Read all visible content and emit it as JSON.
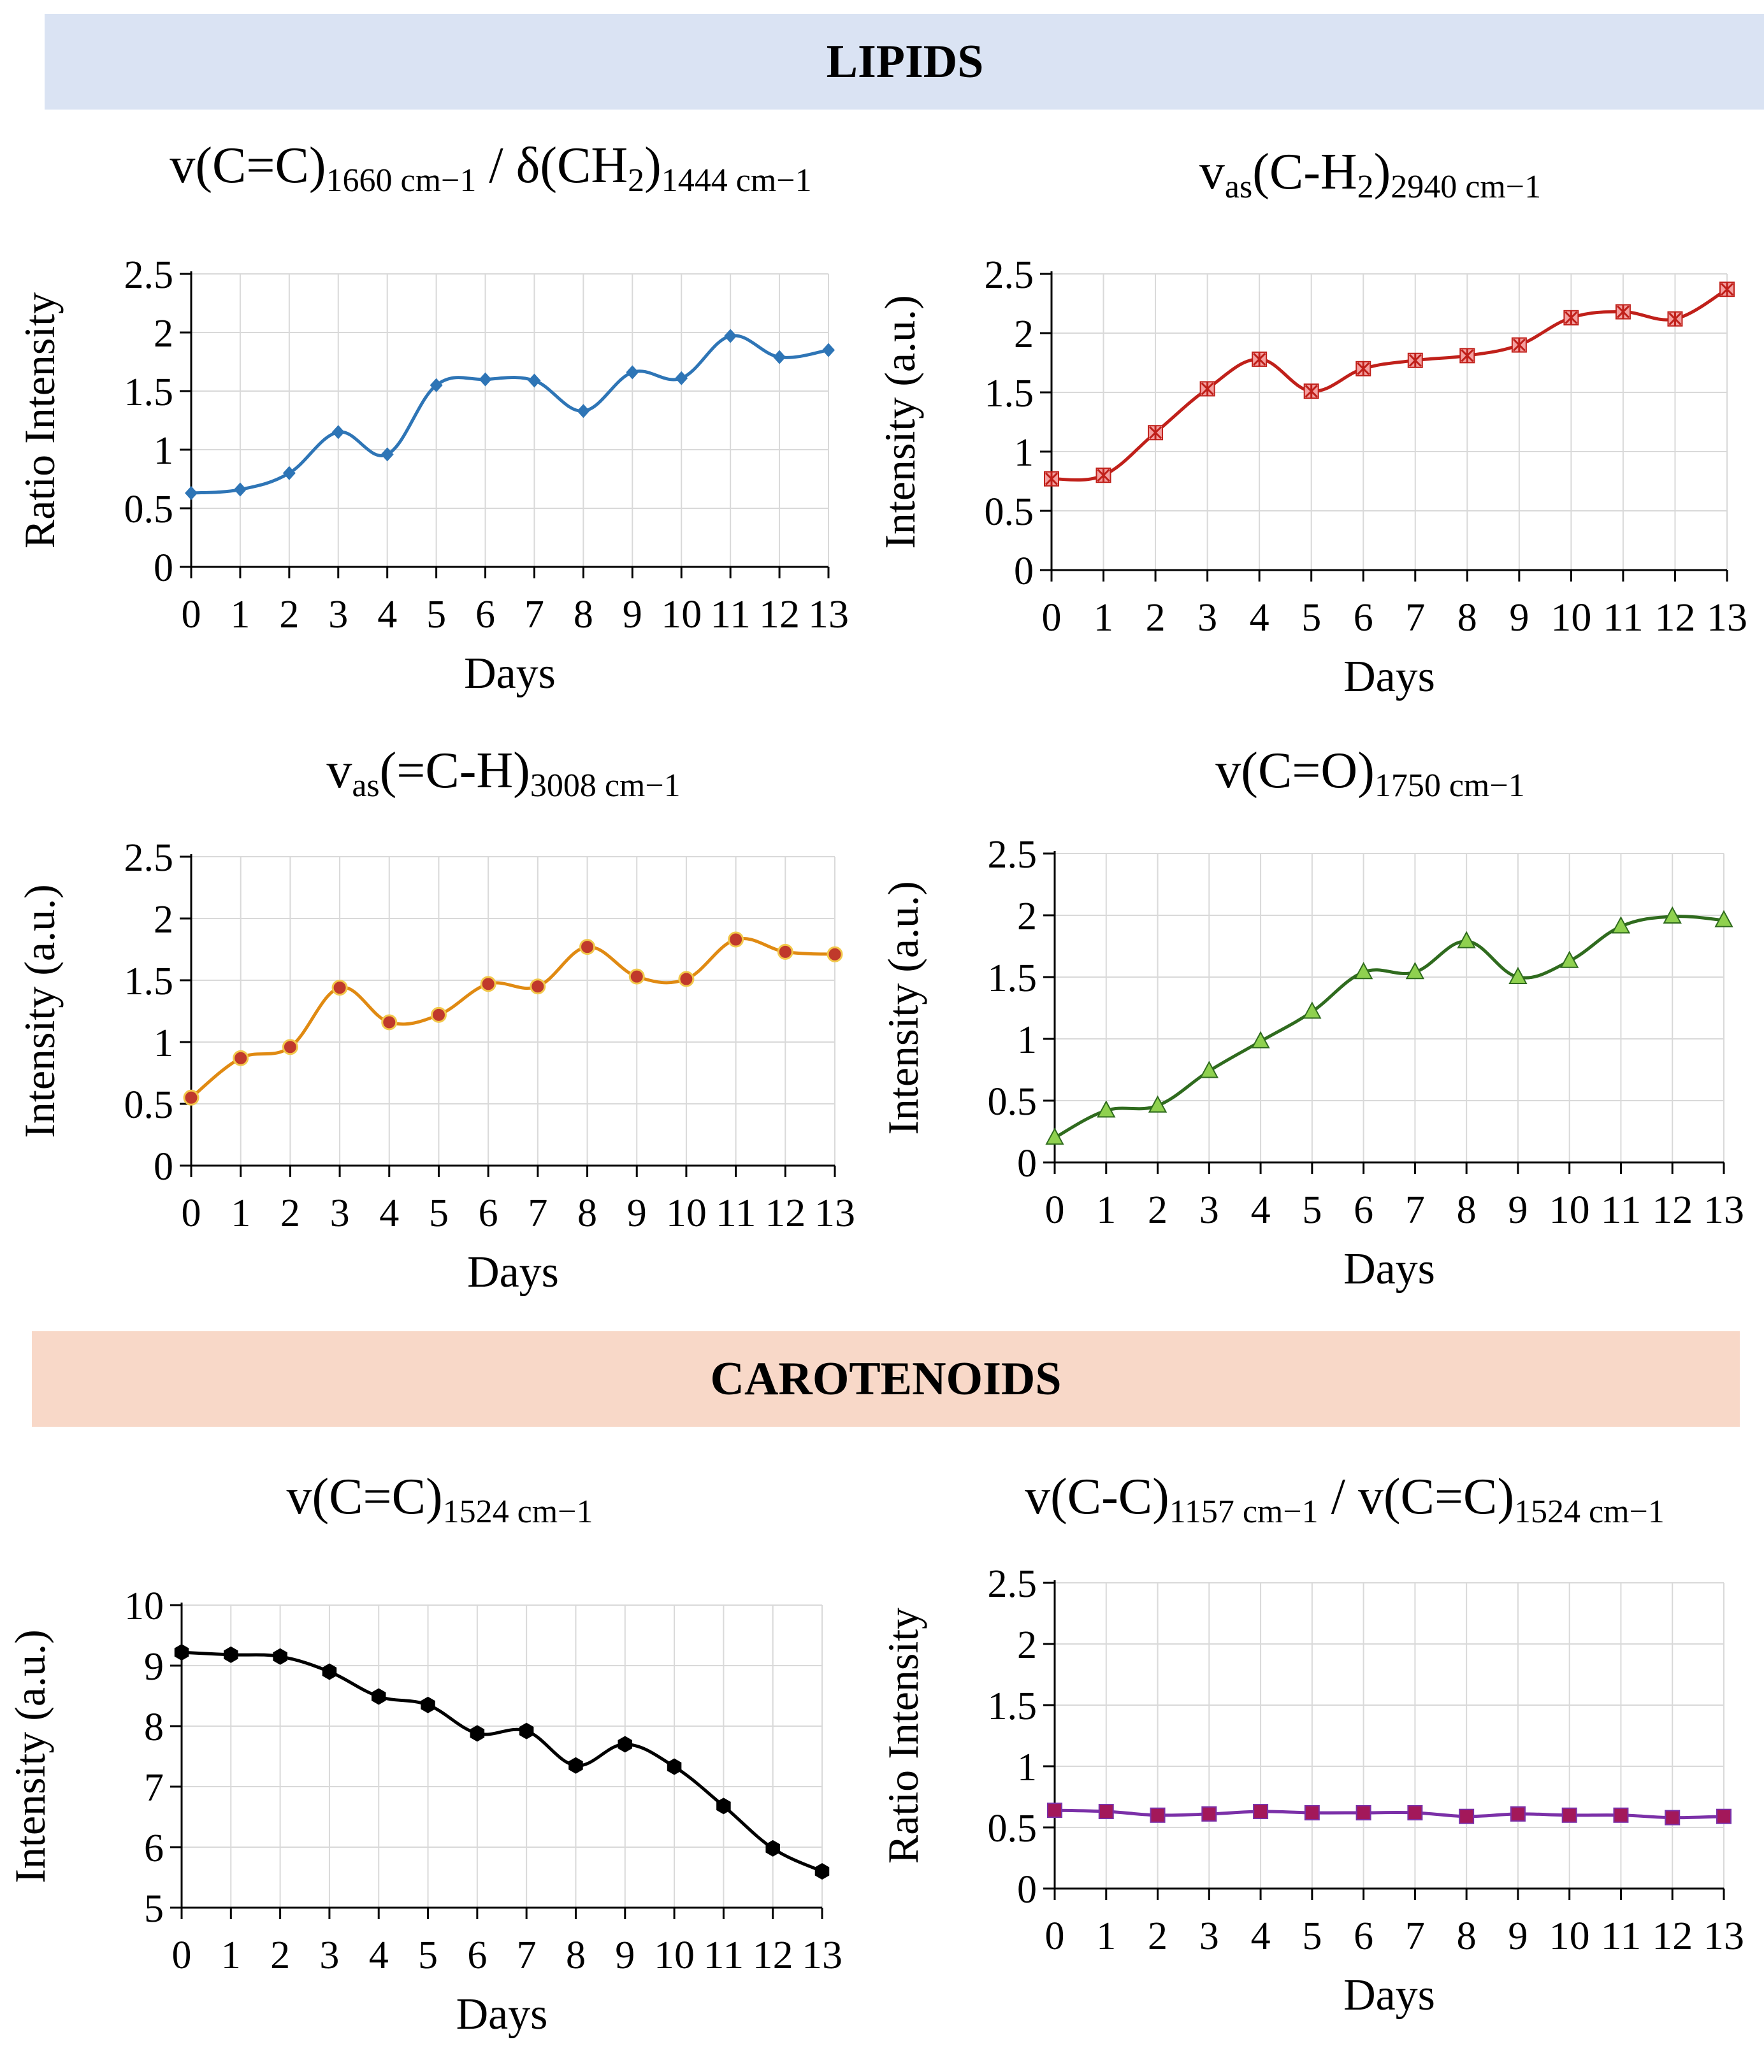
{
  "sections": {
    "lipids": "LIPIDS",
    "carotenoids": "CAROTENOIDS"
  },
  "titles": {
    "c1": {
      "main": "v(C=C)",
      "sub1": "1660 cm−1",
      "mid": " / δ(CH",
      "sub2": "2",
      "mid2": ")",
      "sub3": "1444 cm−1"
    },
    "c2": {
      "main": "v",
      "sub1": "as",
      "mid": "(C-H",
      "sub2": "2",
      "mid2": ")",
      "sub3": "2940 cm−1"
    },
    "c3": {
      "main": "v",
      "sub1": "as",
      "mid": "(=C-H)",
      "sub2": "3008 cm−1"
    },
    "c4": {
      "main": "v(C=O)",
      "sub1": "1750 cm−1"
    },
    "c5": {
      "main": "v(C=C)",
      "sub1": "1524 cm−1"
    },
    "c6": {
      "main": "v(C-C)",
      "sub1": "1157 cm−1",
      "mid": " / v(C=C)",
      "sub2": "1524 cm−1"
    }
  },
  "chart_data": [
    {
      "id": "c1",
      "type": "line",
      "xlabel": "Days",
      "ylabel": "Ratio Intensity",
      "categories": [
        "0",
        "1",
        "2",
        "3",
        "4",
        "5",
        "6",
        "7",
        "8",
        "9",
        "10",
        "11",
        "12",
        "13"
      ],
      "ylim": [
        0,
        2.5
      ],
      "yticks": [
        "0",
        "0.5",
        "1",
        "1.5",
        "2",
        "2.5"
      ],
      "series": [
        {
          "name": "v(C=C)/δ(CH2)",
          "color": "#2e75b6",
          "marker": "diamond",
          "values": [
            0.63,
            0.66,
            0.8,
            1.15,
            0.96,
            1.55,
            1.6,
            1.59,
            1.33,
            1.66,
            1.61,
            1.97,
            1.79,
            1.85
          ]
        }
      ]
    },
    {
      "id": "c2",
      "type": "line",
      "xlabel": "Days",
      "ylabel": "Intensity (a.u.)",
      "categories": [
        "0",
        "1",
        "2",
        "3",
        "4",
        "5",
        "6",
        "7",
        "8",
        "9",
        "10",
        "11",
        "12",
        "13"
      ],
      "ylim": [
        0,
        2.5
      ],
      "yticks": [
        "0",
        "0.5",
        "1",
        "1.5",
        "2",
        "2.5"
      ],
      "series": [
        {
          "name": "vas(C-H2)",
          "color": "#c0201a",
          "marker": "star",
          "fill": "#f4a0a0",
          "values": [
            0.77,
            0.8,
            1.16,
            1.53,
            1.78,
            1.51,
            1.7,
            1.77,
            1.81,
            1.9,
            2.13,
            2.18,
            2.12,
            2.37
          ]
        }
      ]
    },
    {
      "id": "c3",
      "type": "line",
      "xlabel": "Days",
      "ylabel": "Intensity (a.u.)",
      "categories": [
        "0",
        "1",
        "2",
        "3",
        "4",
        "5",
        "6",
        "7",
        "8",
        "9",
        "10",
        "11",
        "12",
        "13"
      ],
      "ylim": [
        0,
        2.5
      ],
      "yticks": [
        "0",
        "0.5",
        "1",
        "1.5",
        "2",
        "2.5"
      ],
      "series": [
        {
          "name": "vas(=C-H)",
          "color": "#e08a12",
          "marker": "circle",
          "fill": "#c0392b",
          "values": [
            0.55,
            0.87,
            0.96,
            1.44,
            1.16,
            1.22,
            1.47,
            1.45,
            1.77,
            1.53,
            1.51,
            1.83,
            1.73,
            1.71
          ]
        }
      ]
    },
    {
      "id": "c4",
      "type": "line",
      "xlabel": "Days",
      "ylabel": "Intensity (a.u.)",
      "categories": [
        "0",
        "1",
        "2",
        "3",
        "4",
        "5",
        "6",
        "7",
        "8",
        "9",
        "10",
        "11",
        "12",
        "13"
      ],
      "ylim": [
        0,
        2.5
      ],
      "yticks": [
        "0",
        "0.5",
        "1",
        "1.5",
        "2",
        "2.5"
      ],
      "series": [
        {
          "name": "v(C=O)",
          "color": "#2f6b1e",
          "marker": "triangle",
          "fill": "#8fd14f",
          "values": [
            0.2,
            0.42,
            0.46,
            0.74,
            0.98,
            1.22,
            1.54,
            1.54,
            1.79,
            1.5,
            1.63,
            1.91,
            1.99,
            1.96
          ]
        }
      ]
    },
    {
      "id": "c5",
      "type": "line",
      "xlabel": "Days",
      "ylabel": "Intensity (a.u.)",
      "categories": [
        "0",
        "1",
        "2",
        "3",
        "4",
        "5",
        "6",
        "7",
        "8",
        "9",
        "10",
        "11",
        "12",
        "13"
      ],
      "ylim": [
        5,
        10
      ],
      "yticks": [
        "5",
        "6",
        "7",
        "8",
        "9",
        "10"
      ],
      "series": [
        {
          "name": "v(C=C)",
          "color": "#000000",
          "marker": "hexagon",
          "values": [
            9.22,
            9.18,
            9.15,
            8.9,
            8.49,
            8.35,
            7.88,
            7.92,
            7.35,
            7.7,
            7.33,
            6.68,
            5.98,
            5.6
          ]
        }
      ]
    },
    {
      "id": "c6",
      "type": "line",
      "xlabel": "Days",
      "ylabel": "Ratio Intensity",
      "categories": [
        "0",
        "1",
        "2",
        "3",
        "4",
        "5",
        "6",
        "7",
        "8",
        "9",
        "10",
        "11",
        "12",
        "13"
      ],
      "ylim": [
        0,
        2.5
      ],
      "yticks": [
        "0",
        "0.5",
        "1",
        "1.5",
        "2",
        "2.5"
      ],
      "series": [
        {
          "name": "v(C-C)/v(C=C)",
          "color": "#7b30a8",
          "marker": "square",
          "fill": "#a3185a",
          "values": [
            0.64,
            0.63,
            0.6,
            0.61,
            0.63,
            0.62,
            0.62,
            0.62,
            0.59,
            0.61,
            0.6,
            0.6,
            0.58,
            0.59
          ]
        }
      ]
    }
  ]
}
